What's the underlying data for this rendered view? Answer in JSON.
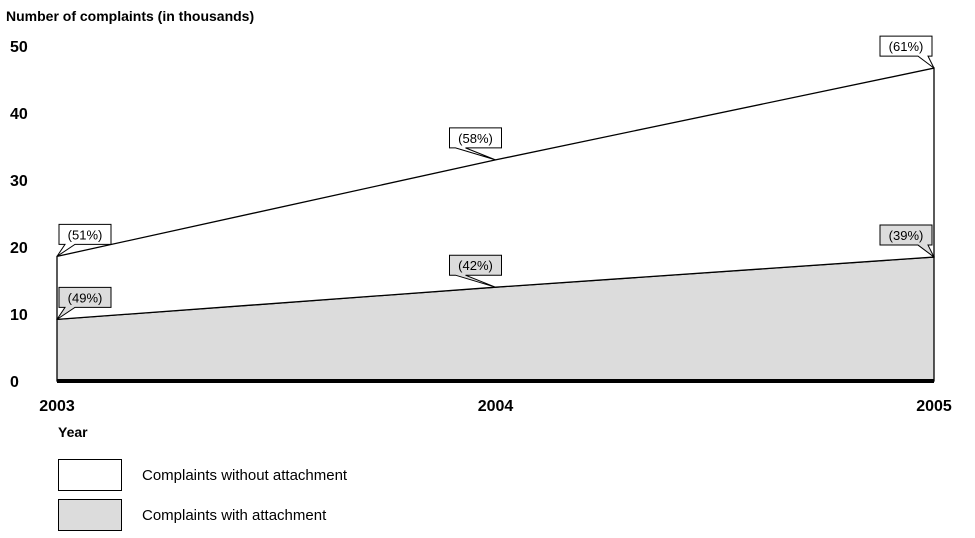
{
  "chart_data": {
    "type": "area",
    "ylabel": "Number of complaints (in thousands)",
    "xlabel": "Year",
    "x": [
      "2003",
      "2004",
      "2005"
    ],
    "ylim": [
      0,
      50
    ],
    "yticks": [
      0,
      10,
      20,
      30,
      40,
      50
    ],
    "stacked": true,
    "series": [
      {
        "name": "Complaints with attachment",
        "values": [
          9.2,
          14,
          18.5
        ],
        "labels": [
          "(49%)",
          "(42%)",
          "(39%)"
        ],
        "color": "#dcdcdc"
      },
      {
        "name": "Complaints without attachment",
        "values": [
          9.4,
          19,
          28.2
        ],
        "labels": [
          "(51%)",
          "(58%)",
          "(61%)"
        ],
        "color": "#ffffff"
      }
    ],
    "grid": false,
    "legend": "bottom-left"
  }
}
